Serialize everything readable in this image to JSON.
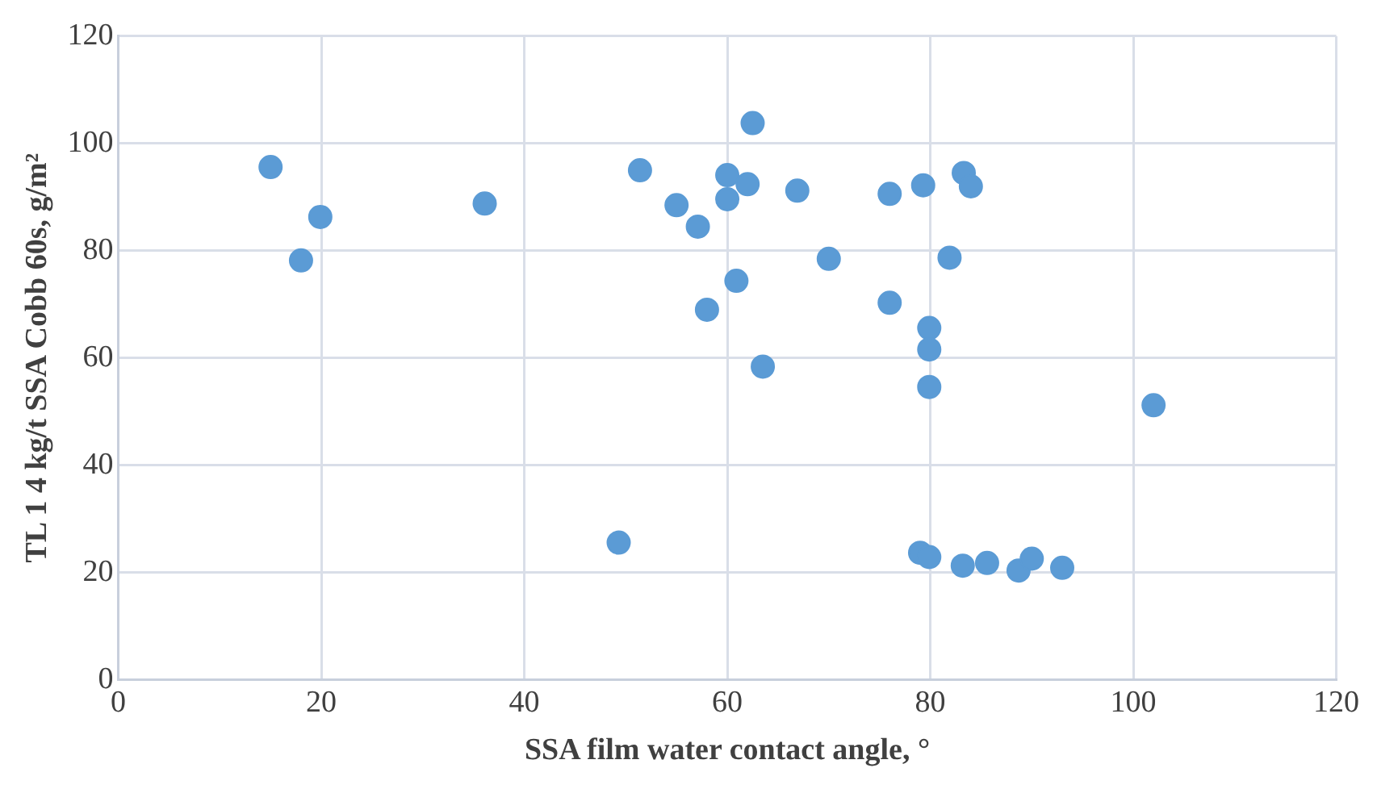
{
  "chart_data": {
    "type": "scatter",
    "xlabel": "SSA film water contact angle, °",
    "ylabel": "TL 1 4 kg/t SSA Cobb 60s, g/m²",
    "x": [
      15.0,
      19.9,
      18.0,
      36.1,
      49.3,
      51.4,
      55.0,
      57.1,
      58.0,
      60.0,
      60.0,
      62.0,
      62.5,
      60.9,
      63.5,
      66.9,
      70.0,
      76.0,
      76.0,
      79.3,
      79.9,
      79.9,
      79.9,
      81.9,
      83.3,
      84.0,
      102.0,
      79.0,
      79.9,
      83.2,
      85.6,
      88.7,
      90.0,
      93.0
    ],
    "series": [
      {
        "color": "#5b9bd5",
        "values": [
          95.6,
          86.3,
          78.2,
          88.8,
          25.6,
          95.0,
          88.5,
          84.5,
          69.0,
          94.1,
          89.6,
          92.4,
          103.8,
          74.4,
          58.4,
          91.2,
          78.5,
          90.6,
          70.3,
          92.2,
          65.6,
          61.6,
          54.6,
          78.7,
          94.5,
          92.0,
          51.2,
          23.7,
          22.9,
          21.3,
          21.8,
          20.4,
          22.6,
          20.9
        ]
      }
    ],
    "xlim": [
      0,
      120
    ],
    "ylim": [
      0,
      120
    ],
    "xticks": [
      0,
      20,
      40,
      60,
      80,
      100,
      120
    ],
    "yticks": [
      0,
      20,
      40,
      60,
      80,
      100,
      120
    ],
    "grid": true,
    "marker": "circle",
    "legend": false
  }
}
